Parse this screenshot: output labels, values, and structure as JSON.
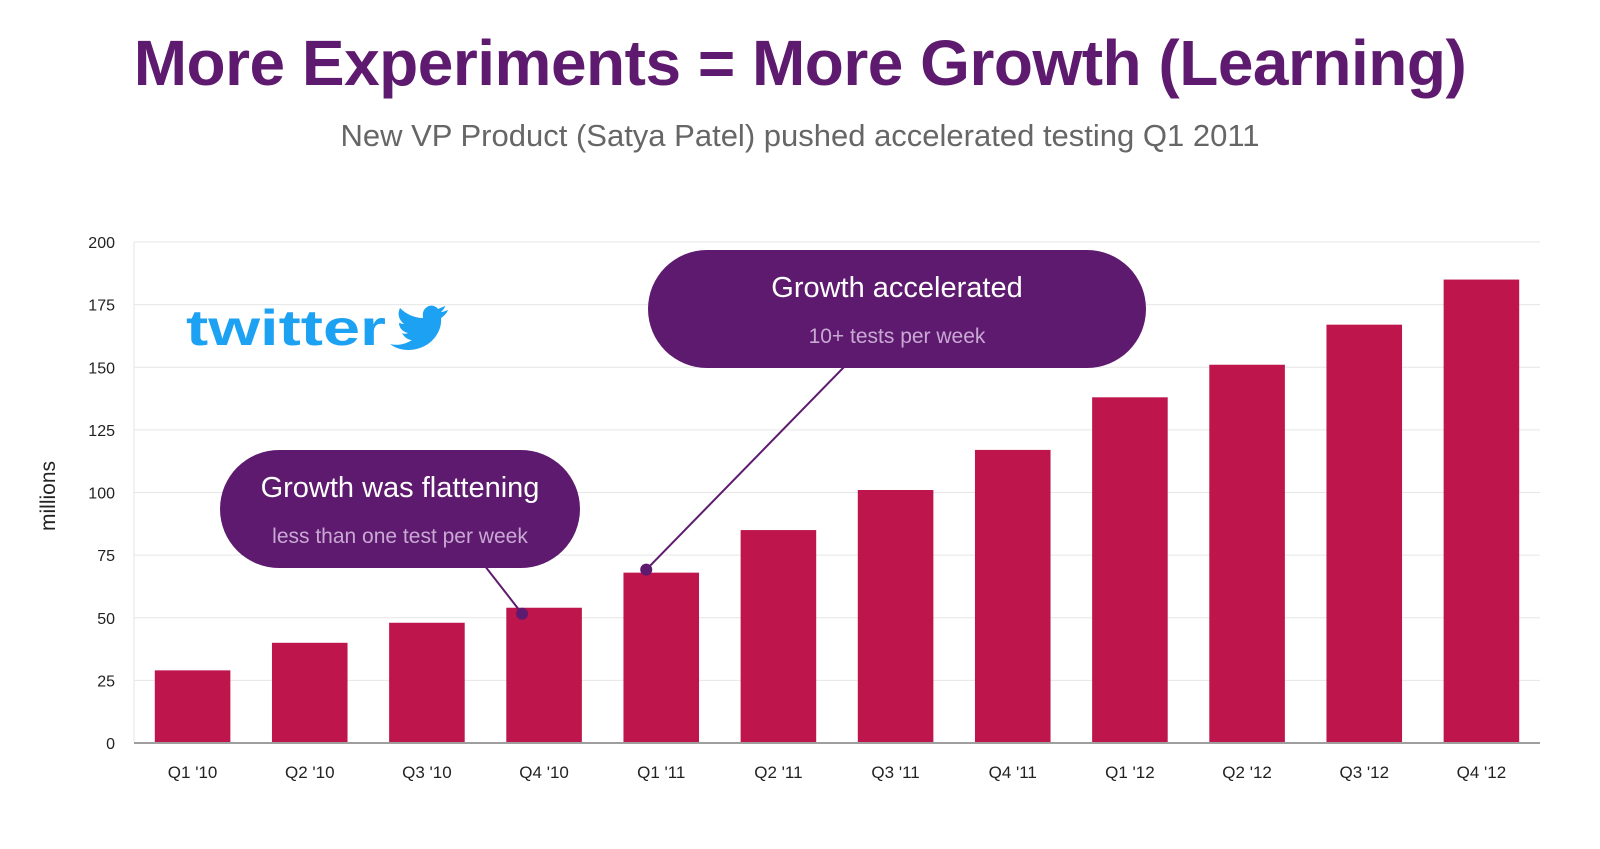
{
  "title": "More Experiments = More Growth (Learning)",
  "subtitle": "New VP Product (Satya Patel) pushed accelerated testing Q1 2011",
  "logo": {
    "text": "twitter",
    "icon": "twitter-bird-icon",
    "color": "#1da1f2"
  },
  "chart_data": {
    "type": "bar",
    "categories": [
      "Q1 '10",
      "Q2 '10",
      "Q3 '10",
      "Q4 '10",
      "Q1 '11",
      "Q2 '11",
      "Q3 '11",
      "Q4 '11",
      "Q1 '12",
      "Q2 '12",
      "Q3 '12",
      "Q4 '12"
    ],
    "values": [
      29,
      40,
      48,
      54,
      68,
      85,
      101,
      117,
      138,
      151,
      167,
      185
    ],
    "ylabel": "millions",
    "xlabel": "",
    "ylim": [
      0,
      200
    ],
    "yticks": [
      0,
      25,
      50,
      75,
      100,
      125,
      150,
      175,
      200
    ],
    "grid": true,
    "bar_color": "#bd154c",
    "annotations": [
      {
        "title": "Growth was flattening",
        "subtitle": "less than one test per week",
        "points_to": "Q4 '10",
        "color": "#5e1a6e"
      },
      {
        "title": "Growth accelerated",
        "subtitle": "10+ tests per week",
        "points_to": "Q1 '11",
        "color": "#5e1a6e"
      }
    ]
  }
}
